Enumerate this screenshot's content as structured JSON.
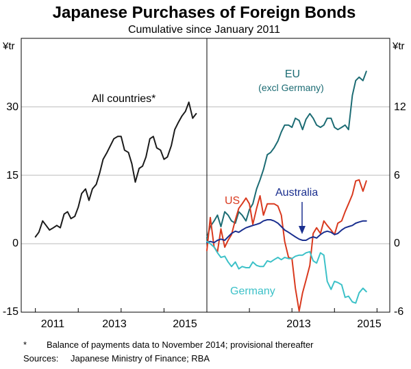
{
  "chart_data": {
    "type": "line",
    "title": "Japanese Purchases of Foreign Bonds",
    "subtitle": "Cumulative since January 2011",
    "footnote_marker": "*",
    "footnote_text": "Balance of payments data to November 2014; provisional thereafter",
    "sources_label": "Sources:",
    "sources_text": "Japanese Ministry of Finance; RBA",
    "left_unit": "¥tr",
    "right_unit": "¥tr",
    "grid": true,
    "panels": [
      {
        "x_ticks": [
          "2011",
          "2013",
          "2015"
        ],
        "x_range": [
          2010.67,
          2015.0
        ],
        "y_ticks": [
          "30",
          "15",
          "0",
          "-15"
        ],
        "ylim": [
          -15,
          45
        ],
        "series": [
          {
            "name": "All countries*",
            "color": "#1a1a1a",
            "x": [
              2011.0,
              2011.08,
              2011.17,
              2011.25,
              2011.33,
              2011.42,
              2011.5,
              2011.58,
              2011.67,
              2011.75,
              2011.83,
              2011.92,
              2012.0,
              2012.08,
              2012.17,
              2012.25,
              2012.33,
              2012.42,
              2012.5,
              2012.58,
              2012.67,
              2012.75,
              2012.83,
              2012.92,
              2013.0,
              2013.08,
              2013.17,
              2013.25,
              2013.33,
              2013.42,
              2013.5,
              2013.58,
              2013.67,
              2013.75,
              2013.83,
              2013.92,
              2014.0,
              2014.08,
              2014.17,
              2014.25,
              2014.33,
              2014.42,
              2014.5,
              2014.58,
              2014.67,
              2014.75
            ],
            "y": [
              1.5,
              2.5,
              5,
              4,
              3,
              3.5,
              4,
              3.5,
              6.5,
              7,
              5.5,
              6,
              8,
              11,
              12,
              9.5,
              12,
              13,
              15.5,
              18.5,
              20,
              21.5,
              23,
              23.5,
              23.5,
              20.5,
              20,
              17.5,
              13.5,
              16.5,
              17,
              19,
              23,
              23.5,
              21,
              20.5,
              18.5,
              19,
              21.5,
              25,
              26.5,
              28,
              29,
              31,
              27.5,
              28.5
            ]
          }
        ]
      },
      {
        "x_ticks": [
          "2013",
          "2015"
        ],
        "x_range": [
          2011.0,
          2015.3
        ],
        "y_ticks": [
          "12",
          "6",
          "0",
          "-6"
        ],
        "ylim": [
          -6,
          18
        ],
        "series": [
          {
            "name": "EU (excl Germany)",
            "label_lines": [
              "EU",
              "(excl Germany)"
            ],
            "color": "#1b6b73",
            "x": [
              2011.0,
              2011.08,
              2011.17,
              2011.25,
              2011.33,
              2011.42,
              2011.5,
              2011.58,
              2011.67,
              2011.75,
              2011.83,
              2011.92,
              2012.0,
              2012.08,
              2012.17,
              2012.25,
              2012.33,
              2012.42,
              2012.5,
              2012.58,
              2012.67,
              2012.75,
              2012.83,
              2012.92,
              2013.0,
              2013.08,
              2013.17,
              2013.25,
              2013.33,
              2013.42,
              2013.5,
              2013.58,
              2013.67,
              2013.75,
              2013.83,
              2013.92,
              2014.0,
              2014.08,
              2014.17,
              2014.25,
              2014.33,
              2014.42,
              2014.5,
              2014.58,
              2014.67,
              2014.75
            ],
            "y": [
              0.5,
              1.5,
              2,
              2.5,
              1.5,
              2.8,
              2.5,
              2.0,
              1.8,
              2.8,
              2.5,
              2.0,
              3.0,
              3.5,
              4.8,
              5.6,
              6.5,
              7.8,
              8.0,
              8.4,
              9.0,
              9.8,
              10.4,
              10.4,
              10.2,
              11.0,
              10.8,
              10.0,
              10.9,
              11.4,
              11.0,
              10.4,
              10.2,
              10.4,
              11.0,
              11.0,
              10.2,
              10.0,
              10.2,
              10.4,
              10.0,
              13.0,
              14.3,
              14.6,
              14.3,
              15.1
            ]
          },
          {
            "name": "US",
            "color": "#d9391e",
            "x": [
              2011.0,
              2011.08,
              2011.17,
              2011.25,
              2011.33,
              2011.42,
              2011.5,
              2011.58,
              2011.67,
              2011.75,
              2011.83,
              2011.92,
              2012.0,
              2012.08,
              2012.17,
              2012.25,
              2012.33,
              2012.42,
              2012.5,
              2012.58,
              2012.67,
              2012.75,
              2012.83,
              2012.92,
              2013.0,
              2013.08,
              2013.17,
              2013.25,
              2013.33,
              2013.42,
              2013.5,
              2013.58,
              2013.67,
              2013.75,
              2013.83,
              2013.92,
              2014.0,
              2014.08,
              2014.17,
              2014.25,
              2014.33,
              2014.42,
              2014.5,
              2014.58,
              2014.67,
              2014.75
            ],
            "y": [
              -0.6,
              2.3,
              -0.3,
              -0.7,
              1.3,
              -0.3,
              0.3,
              0.8,
              2.1,
              3.1,
              3.5,
              4.0,
              3.5,
              1.7,
              3.1,
              4.2,
              2.5,
              3.5,
              3.5,
              3.5,
              3.3,
              2.5,
              0.2,
              -1.2,
              -1.3,
              -3.9,
              -5.9,
              -4.3,
              -3.2,
              -1.9,
              0.9,
              1.4,
              0.9,
              2.0,
              1.6,
              1.2,
              0.8,
              1.8,
              2.0,
              2.8,
              3.5,
              4.3,
              5.5,
              5.6,
              4.6,
              5.5
            ]
          },
          {
            "name": "Australia",
            "color": "#1a2f8f",
            "x": [
              2011.0,
              2011.08,
              2011.17,
              2011.25,
              2011.33,
              2011.42,
              2011.5,
              2011.58,
              2011.67,
              2011.75,
              2011.83,
              2011.92,
              2012.0,
              2012.08,
              2012.17,
              2012.25,
              2012.33,
              2012.42,
              2012.5,
              2012.58,
              2012.67,
              2012.75,
              2012.83,
              2012.92,
              2013.0,
              2013.08,
              2013.17,
              2013.25,
              2013.33,
              2013.42,
              2013.5,
              2013.58,
              2013.67,
              2013.75,
              2013.83,
              2013.92,
              2014.0,
              2014.08,
              2014.17,
              2014.25,
              2014.33,
              2014.42,
              2014.5,
              2014.58,
              2014.67,
              2014.75
            ],
            "y": [
              0.1,
              0.2,
              0.1,
              0.3,
              0.4,
              0.3,
              0.6,
              0.9,
              1.1,
              1.0,
              1.2,
              1.4,
              1.5,
              1.6,
              1.7,
              1.8,
              2.0,
              2.1,
              2.1,
              2.0,
              1.8,
              1.5,
              1.2,
              1.0,
              0.8,
              0.6,
              0.4,
              0.3,
              0.3,
              0.5,
              0.6,
              0.5,
              0.8,
              1.0,
              1.1,
              1.0,
              0.8,
              0.9,
              1.2,
              1.4,
              1.5,
              1.6,
              1.8,
              1.9,
              2.0,
              2.0
            ]
          },
          {
            "name": "Germany",
            "color": "#3cc1c8",
            "x": [
              2011.0,
              2011.08,
              2011.17,
              2011.25,
              2011.33,
              2011.42,
              2011.5,
              2011.58,
              2011.67,
              2011.75,
              2011.83,
              2011.92,
              2012.0,
              2012.08,
              2012.17,
              2012.25,
              2012.33,
              2012.42,
              2012.5,
              2012.58,
              2012.67,
              2012.75,
              2012.83,
              2012.92,
              2013.0,
              2013.08,
              2013.17,
              2013.25,
              2013.33,
              2013.42,
              2013.5,
              2013.58,
              2013.67,
              2013.75,
              2013.83,
              2013.92,
              2014.0,
              2014.08,
              2014.17,
              2014.25,
              2014.33,
              2014.42,
              2014.5,
              2014.58,
              2014.67,
              2014.75
            ],
            "y": [
              0.2,
              0.0,
              -0.3,
              -0.8,
              -1.2,
              -1.1,
              -1.6,
              -2.0,
              -1.6,
              -2.2,
              -2.0,
              -2.1,
              -2.1,
              -1.6,
              -1.9,
              -2.0,
              -2.0,
              -1.5,
              -1.6,
              -1.4,
              -1.2,
              -1.4,
              -1.2,
              -1.3,
              -1.3,
              -1.1,
              -1.0,
              -1.0,
              -0.8,
              -0.7,
              -1.5,
              -1.7,
              -0.8,
              -1.0,
              -3.3,
              -4.0,
              -3.3,
              -3.4,
              -3.6,
              -4.7,
              -4.6,
              -5.1,
              -5.2,
              -4.3,
              -3.9,
              -4.2
            ]
          }
        ]
      }
    ]
  }
}
